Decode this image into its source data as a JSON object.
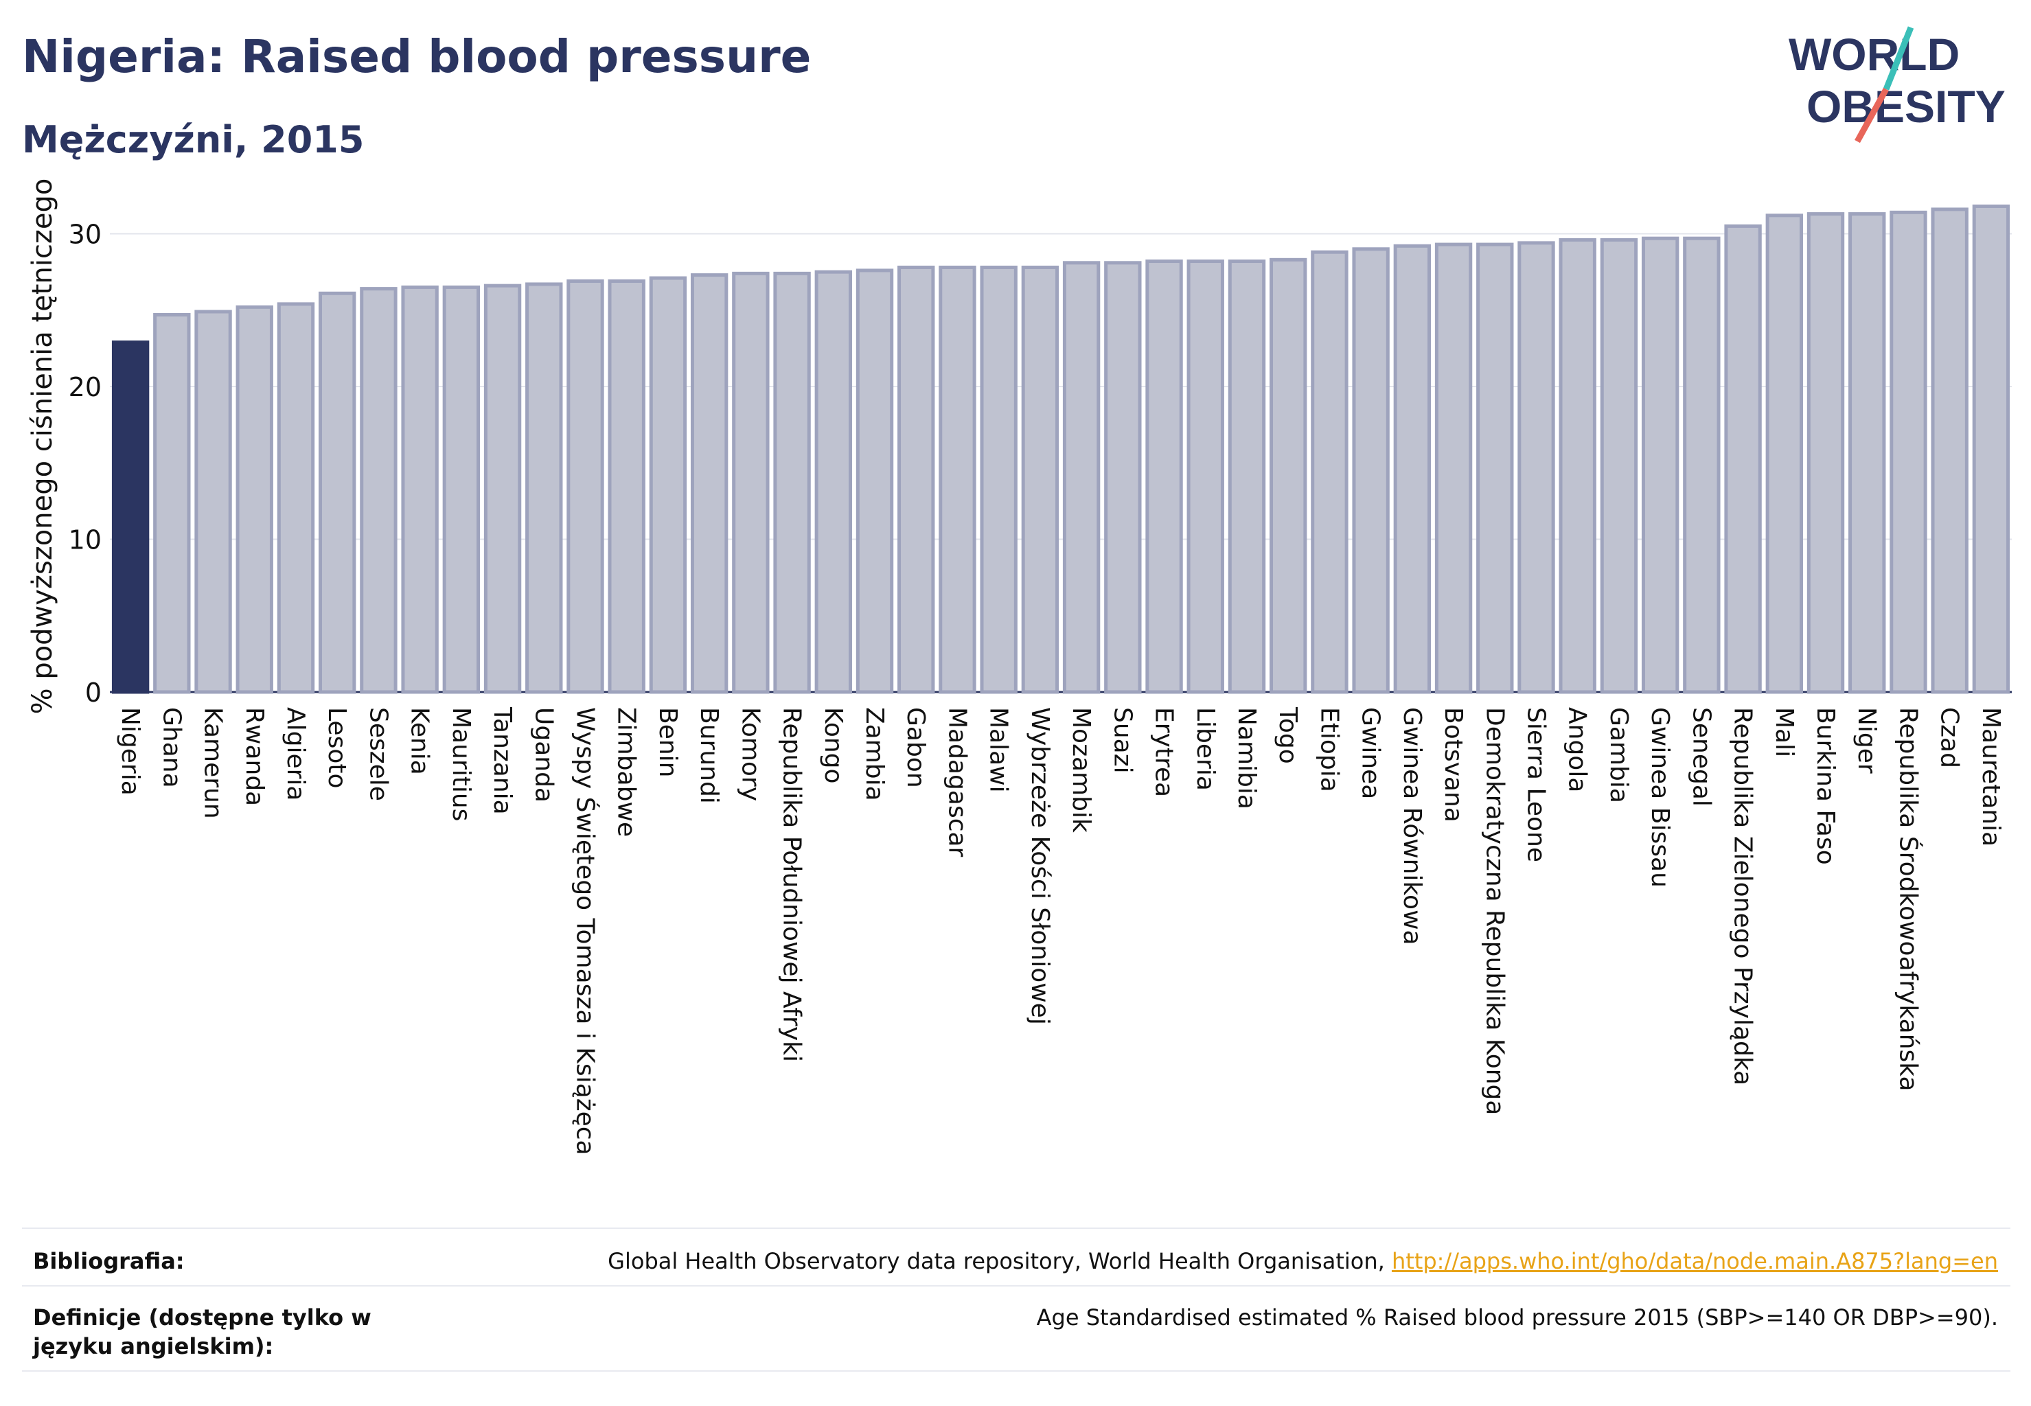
{
  "header": {
    "title": "Nigeria: Raised blood pressure",
    "subtitle": "Mężczyźni, 2015"
  },
  "logo": {
    "line1": "WORLD",
    "line2": "OBESITY",
    "colors": {
      "text": "#2b3561",
      "slash_red": "#e8665a",
      "slash_teal": "#3bbfb8"
    }
  },
  "chart_data": {
    "type": "bar",
    "ylabel": "% podwyższonego ciśnienia tętniczego",
    "ylim": [
      0,
      32
    ],
    "yticks": [
      0,
      10,
      20,
      30
    ],
    "grid": true,
    "colors": {
      "highlight": "#2b3561",
      "other_fill": "#bfc2d0",
      "other_edge": "#9ea3bd"
    },
    "categories": [
      "Nigeria",
      "Ghana",
      "Kamerun",
      "Rwanda",
      "Algieria",
      "Lesoto",
      "Seszele",
      "Kenia",
      "Mauritius",
      "Tanzania",
      "Uganda",
      "Wyspy Świętego Tomasza i Książęca",
      "Zimbabwe",
      "Benin",
      "Burundi",
      "Komory",
      "Republika Południowej Afryki",
      "Kongo",
      "Zambia",
      "Gabon",
      "Madagascar",
      "Malawi",
      "Wybrzeże Kości Słoniowej",
      "Mozambik",
      "Suazi",
      "Erytrea",
      "Liberia",
      "Namibia",
      "Togo",
      "Etiopia",
      "Gwinea",
      "Gwinea Równikowa",
      "Botsvana",
      "Demokratyczna Republika Konga",
      "Sierra Leone",
      "Angola",
      "Gambia",
      "Gwinea Bissau",
      "Senegal",
      "Republika Zielonego Przylądka",
      "Mali",
      "Burkina Faso",
      "Niger",
      "Republika Środkowoafrykańska",
      "Czad",
      "Mauretania"
    ],
    "values": [
      22.9,
      24.7,
      24.9,
      25.2,
      25.4,
      26.1,
      26.4,
      26.5,
      26.5,
      26.6,
      26.7,
      26.9,
      26.9,
      27.1,
      27.3,
      27.4,
      27.4,
      27.5,
      27.6,
      27.8,
      27.8,
      27.8,
      27.8,
      28.1,
      28.1,
      28.2,
      28.2,
      28.2,
      28.3,
      28.8,
      29.0,
      29.2,
      29.3,
      29.3,
      29.4,
      29.6,
      29.6,
      29.7,
      29.7,
      30.5,
      31.2,
      31.3,
      31.3,
      31.4,
      31.6,
      31.8
    ],
    "highlight_index": 0
  },
  "footer": {
    "bibliography_label": "Bibliografia:",
    "bibliography_text": "Global Health Observatory data repository, World Health Organisation, ",
    "bibliography_link": "http://apps.who.int/gho/data/node.main.A875?lang=en",
    "definition_label": "Definicje (dostępne tylko w języku angielskim):",
    "definition_text": "Age Standardised estimated % Raised blood pressure 2015 (SBP>=140 OR DBP>=90)."
  }
}
